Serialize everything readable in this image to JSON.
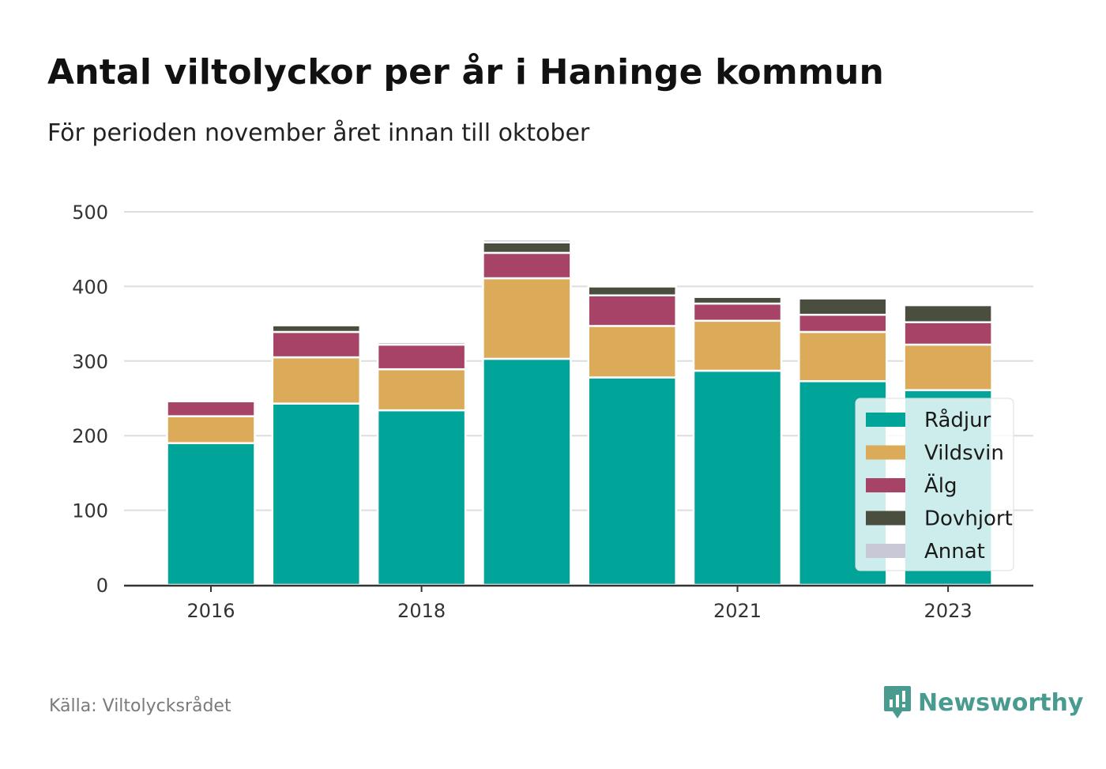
{
  "title": "Antal viltolyckor per år i Haninge kommun",
  "subtitle": "För perioden november året innan till oktober",
  "source": "Källa: Viltolycksrådet",
  "brand": {
    "name": "Newsworthy",
    "icon": "newsworthy-logo-icon",
    "color": "#4a9b8f"
  },
  "chart_data": {
    "type": "bar",
    "stacked": true,
    "categories": [
      "2016",
      "2017",
      "2018",
      "2019",
      "2020",
      "2021",
      "2022",
      "2023"
    ],
    "x_tick_labels": [
      "2016",
      "",
      "2018",
      "",
      "",
      "2021",
      "",
      "2023"
    ],
    "ylim": [
      0,
      500
    ],
    "yticks": [
      0,
      100,
      200,
      300,
      400,
      500
    ],
    "grid": true,
    "legend_position": "right",
    "series": [
      {
        "name": "Rådjur",
        "color": "#00a499",
        "values": [
          190,
          243,
          234,
          303,
          278,
          287,
          273,
          261
        ]
      },
      {
        "name": "Vildsvin",
        "color": "#dbab59",
        "values": [
          36,
          62,
          55,
          108,
          69,
          67,
          66,
          61
        ]
      },
      {
        "name": "Älg",
        "color": "#a64366",
        "values": [
          20,
          34,
          33,
          34,
          41,
          23,
          23,
          30
        ]
      },
      {
        "name": "Dovhjort",
        "color": "#4a4e3e",
        "values": [
          0,
          9,
          3,
          14,
          12,
          9,
          22,
          23
        ]
      },
      {
        "name": "Annat",
        "color": "#c8c8d6",
        "values": [
          0,
          1,
          2,
          4,
          1,
          2,
          1,
          2
        ]
      }
    ]
  }
}
